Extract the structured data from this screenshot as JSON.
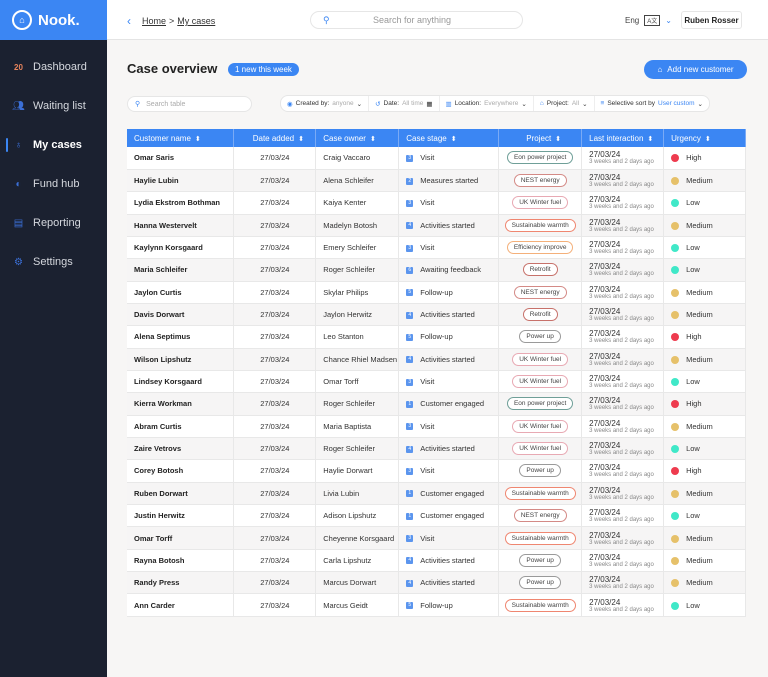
{
  "app": {
    "name": "Nook."
  },
  "sidebar": {
    "items": [
      {
        "label": "Dashboard",
        "icon": "20",
        "active": false
      },
      {
        "label": "Waiting list",
        "icon": "people-icon",
        "active": false
      },
      {
        "label": "My cases",
        "icon": "lightbulb-icon",
        "active": true
      },
      {
        "label": "Fund hub",
        "icon": "fund-icon",
        "active": false
      },
      {
        "label": "Reporting",
        "icon": "document-icon",
        "active": false
      },
      {
        "label": "Settings",
        "icon": "gear-icon",
        "active": false
      }
    ]
  },
  "header": {
    "breadcrumb": [
      "Home",
      "My cases"
    ],
    "separator": ">",
    "search_placeholder": "Search for anything",
    "language": "Eng",
    "language_icon": "A文",
    "user": "Ruben Rosser"
  },
  "page": {
    "title": "Case overview",
    "badge": "1 new this week",
    "add_button": "Add new customer",
    "table_search_placeholder": "Search table"
  },
  "filters": [
    {
      "label": "Created by:",
      "value": "anyone"
    },
    {
      "label": "Date:",
      "value": "All time"
    },
    {
      "label": "Location:",
      "value": "Everywhere"
    },
    {
      "label": "Project:",
      "value": "All"
    },
    {
      "label": "Selective sort by",
      "value": "User custom"
    }
  ],
  "columns": [
    "Customer name",
    "Date added",
    "Case owner",
    "Case stage",
    "Project",
    "Last interaction",
    "Urgency"
  ],
  "colors": {
    "accent": "#3b86f3",
    "High": "#ee3b4e",
    "Medium": "#e6c16a",
    "Low": "#40e8c8"
  },
  "project_colors": {
    "Eon power project": "#6f9f98",
    "NEST energy": "#d48a86",
    "UK Winter fuel": "#e8a9b3",
    "Sustainable warmth": "#ef8670",
    "Efficiency improve": "#f4b07a",
    "Retrofit": "#c7716a",
    "Power up": "#9a9a9a"
  },
  "rows": [
    {
      "name": "Omar Saris",
      "date": "27/03/24",
      "owner": "Craig Vaccaro",
      "stage_num": "3",
      "stage": "Visit",
      "project": "Eon power project",
      "last": "27/03/24",
      "ago": "3 weeks and 2 days ago",
      "urgency": "High"
    },
    {
      "name": "Haylie Lubin",
      "date": "27/03/24",
      "owner": "Alena Schleifer",
      "stage_num": "2",
      "stage": "Measures started",
      "project": "NEST energy",
      "last": "27/03/24",
      "ago": "3 weeks and 2 days ago",
      "urgency": "Medium"
    },
    {
      "name": "Lydia Ekstrom Bothman",
      "date": "27/03/24",
      "owner": "Kaiya Kenter",
      "stage_num": "3",
      "stage": "Visit",
      "project": "UK Winter fuel",
      "last": "27/03/24",
      "ago": "3 weeks and 2 days ago",
      "urgency": "Low"
    },
    {
      "name": "Hanna Westervelt",
      "date": "27/03/24",
      "owner": "Madelyn Botosh",
      "stage_num": "4",
      "stage": "Activities started",
      "project": "Sustainable warmth",
      "last": "27/03/24",
      "ago": "3 weeks and 2 days ago",
      "urgency": "Medium"
    },
    {
      "name": "Kaylynn Korsgaard",
      "date": "27/03/24",
      "owner": "Emery Schleifer",
      "stage_num": "3",
      "stage": "Visit",
      "project": "Efficiency improve",
      "last": "27/03/24",
      "ago": "3 weeks and 2 days ago",
      "urgency": "Low"
    },
    {
      "name": "Maria Schleifer",
      "date": "27/03/24",
      "owner": "Roger Schleifer",
      "stage_num": "6",
      "stage": "Awaiting feedback",
      "project": "Retrofit",
      "last": "27/03/24",
      "ago": "3 weeks and 2 days ago",
      "urgency": "Low"
    },
    {
      "name": "Jaylon Curtis",
      "date": "27/03/24",
      "owner": "Skylar Philips",
      "stage_num": "5",
      "stage": "Follow-up",
      "project": "NEST energy",
      "last": "27/03/24",
      "ago": "3 weeks and 2 days ago",
      "urgency": "Medium"
    },
    {
      "name": "Davis Dorwart",
      "date": "27/03/24",
      "owner": "Jaylon Herwitz",
      "stage_num": "4",
      "stage": "Activities started",
      "project": "Retrofit",
      "last": "27/03/24",
      "ago": "3 weeks and 2 days ago",
      "urgency": "Medium"
    },
    {
      "name": "Alena Septimus",
      "date": "27/03/24",
      "owner": "Leo Stanton",
      "stage_num": "5",
      "stage": "Follow-up",
      "project": "Power up",
      "last": "27/03/24",
      "ago": "3 weeks and 2 days ago",
      "urgency": "High"
    },
    {
      "name": "Wilson Lipshutz",
      "date": "27/03/24",
      "owner": "Chance Rhiel Madsen",
      "stage_num": "4",
      "stage": "Activities started",
      "project": "UK Winter fuel",
      "last": "27/03/24",
      "ago": "3 weeks and 2 days ago",
      "urgency": "Medium"
    },
    {
      "name": "Lindsey Korsgaard",
      "date": "27/03/24",
      "owner": "Omar Torff",
      "stage_num": "3",
      "stage": "Visit",
      "project": "UK Winter fuel",
      "last": "27/03/24",
      "ago": "3 weeks and 2 days ago",
      "urgency": "Low"
    },
    {
      "name": "Kierra Workman",
      "date": "27/03/24",
      "owner": "Roger Schleifer",
      "stage_num": "1",
      "stage": "Customer engaged",
      "project": "Eon power project",
      "last": "27/03/24",
      "ago": "3 weeks and 2 days ago",
      "urgency": "High"
    },
    {
      "name": "Abram Curtis",
      "date": "27/03/24",
      "owner": "Maria Baptista",
      "stage_num": "3",
      "stage": "Visit",
      "project": "UK Winter fuel",
      "last": "27/03/24",
      "ago": "3 weeks and 2 days ago",
      "urgency": "Medium"
    },
    {
      "name": "Zaire Vetrovs",
      "date": "27/03/24",
      "owner": "Roger Schleifer",
      "stage_num": "4",
      "stage": "Activities started",
      "project": "UK Winter fuel",
      "last": "27/03/24",
      "ago": "3 weeks and 2 days ago",
      "urgency": "Low"
    },
    {
      "name": "Corey Botosh",
      "date": "27/03/24",
      "owner": "Haylie Dorwart",
      "stage_num": "3",
      "stage": "Visit",
      "project": "Power up",
      "last": "27/03/24",
      "ago": "3 weeks and 2 days ago",
      "urgency": "High"
    },
    {
      "name": "Ruben Dorwart",
      "date": "27/03/24",
      "owner": "Livia Lubin",
      "stage_num": "1",
      "stage": "Customer engaged",
      "project": "Sustainable warmth",
      "last": "27/03/24",
      "ago": "3 weeks and 2 days ago",
      "urgency": "Medium"
    },
    {
      "name": "Justin Herwitz",
      "date": "27/03/24",
      "owner": "Adison Lipshutz",
      "stage_num": "1",
      "stage": "Customer engaged",
      "project": "NEST energy",
      "last": "27/03/24",
      "ago": "3 weeks and 2 days ago",
      "urgency": "Low"
    },
    {
      "name": "Omar Torff",
      "date": "27/03/24",
      "owner": "Cheyenne Korsgaard",
      "stage_num": "3",
      "stage": "Visit",
      "project": "Sustainable warmth",
      "last": "27/03/24",
      "ago": "3 weeks and 2 days ago",
      "urgency": "Medium"
    },
    {
      "name": "Rayna Botosh",
      "date": "27/03/24",
      "owner": "Carla Lipshutz",
      "stage_num": "4",
      "stage": "Activities started",
      "project": "Power up",
      "last": "27/03/24",
      "ago": "3 weeks and 2 days ago",
      "urgency": "Medium"
    },
    {
      "name": "Randy Press",
      "date": "27/03/24",
      "owner": "Marcus Dorwart",
      "stage_num": "4",
      "stage": "Activities started",
      "project": "Power up",
      "last": "27/03/24",
      "ago": "3 weeks and 2 days ago",
      "urgency": "Medium"
    },
    {
      "name": "Ann Carder",
      "date": "27/03/24",
      "owner": "Marcus Geidt",
      "stage_num": "5",
      "stage": "Follow-up",
      "project": "Sustainable warmth",
      "last": "27/03/24",
      "ago": "3 weeks and 2 days ago",
      "urgency": "Low"
    }
  ]
}
